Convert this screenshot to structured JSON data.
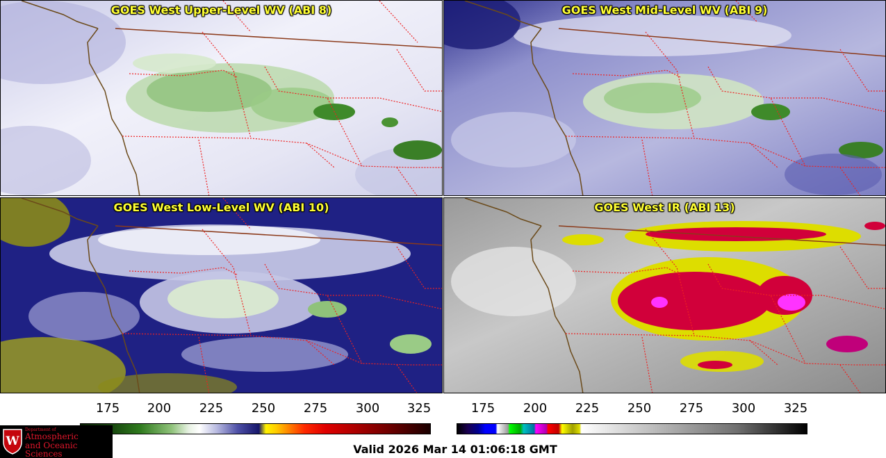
{
  "panels": [
    {
      "id": "upper",
      "title": "GOES West Upper-Level WV (ABI 8)",
      "palette": "wv"
    },
    {
      "id": "mid",
      "title": "GOES West Mid-Level WV (ABI 9)",
      "palette": "wv"
    },
    {
      "id": "low",
      "title": "GOES West Low-Level WV (ABI 10)",
      "palette": "wv"
    },
    {
      "id": "ir",
      "title": "GOES West IR (ABI 13)",
      "palette": "ir"
    }
  ],
  "colorbars": {
    "wv": {
      "ticks": [
        "175",
        "200",
        "225",
        "250",
        "275",
        "300",
        "325"
      ]
    },
    "ir": {
      "ticks": [
        "175",
        "200",
        "225",
        "250",
        "275",
        "300",
        "325"
      ]
    }
  },
  "logo": {
    "dept": "Department of",
    "line1": "Atmospheric",
    "line2": "and Oceanic Sciences",
    "seal_letter": "W"
  },
  "valid_time": "Valid 2026 Mar 14 01:06:18 GMT",
  "colors": {
    "title": "#ffff33",
    "state_border": "#ee2222",
    "coastline": "#6b4a1a",
    "intl_border": "#8b3a1a",
    "logo_red": "#e0162b"
  }
}
